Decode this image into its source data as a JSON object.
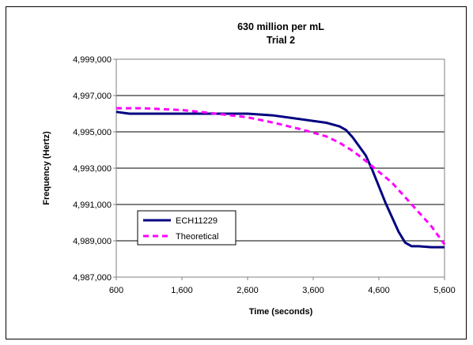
{
  "chart_data": {
    "type": "line",
    "title": "630 million per mL",
    "subtitle": "Trial 2",
    "xlabel": "Time (seconds)",
    "ylabel": "Frequency (Hertz)",
    "xlim": [
      600,
      5600
    ],
    "ylim": [
      4987000,
      4999000
    ],
    "x_ticks": [
      600,
      1600,
      2600,
      3600,
      4600,
      5600
    ],
    "x_tick_labels": [
      "600",
      "1,600",
      "2,600",
      "3,600",
      "4,600",
      "5,600"
    ],
    "y_ticks": [
      4987000,
      4989000,
      4991000,
      4993000,
      4995000,
      4997000,
      4999000
    ],
    "y_tick_labels": [
      "4,987,000",
      "4,989,000",
      "4,991,000",
      "4,993,000",
      "4,995,000",
      "4,997,000",
      "4,999,000"
    ],
    "grid": "horizontal",
    "legend_position": "lower-left",
    "series": [
      {
        "name": "ECH11229",
        "color": "#000080",
        "style": "solid",
        "x": [
          600,
          800,
          1000,
          1600,
          2000,
          2600,
          3000,
          3400,
          3800,
          4000,
          4100,
          4200,
          4300,
          4400,
          4500,
          4600,
          4700,
          4800,
          4900,
          5000,
          5100,
          5200,
          5400,
          5600
        ],
        "y": [
          4996100,
          4996000,
          4996000,
          4996000,
          4996000,
          4996000,
          4995900,
          4995700,
          4995500,
          4995300,
          4995100,
          4994700,
          4994200,
          4993700,
          4992900,
          4992000,
          4991100,
          4990300,
          4989500,
          4988900,
          4988700,
          4988700,
          4988650,
          4988650
        ]
      },
      {
        "name": "Theoretical",
        "color": "#ff00ff",
        "style": "dashed",
        "x": [
          600,
          1000,
          1600,
          2000,
          2600,
          3000,
          3400,
          3800,
          4000,
          4200,
          4400,
          4600,
          4800,
          5000,
          5200,
          5400,
          5600
        ],
        "y": [
          4996300,
          4996300,
          4996200,
          4996050,
          4995800,
          4995500,
          4995150,
          4994750,
          4994400,
          4993950,
          4993400,
          4992800,
          4992200,
          4991400,
          4990600,
          4989800,
          4988800
        ]
      }
    ]
  }
}
